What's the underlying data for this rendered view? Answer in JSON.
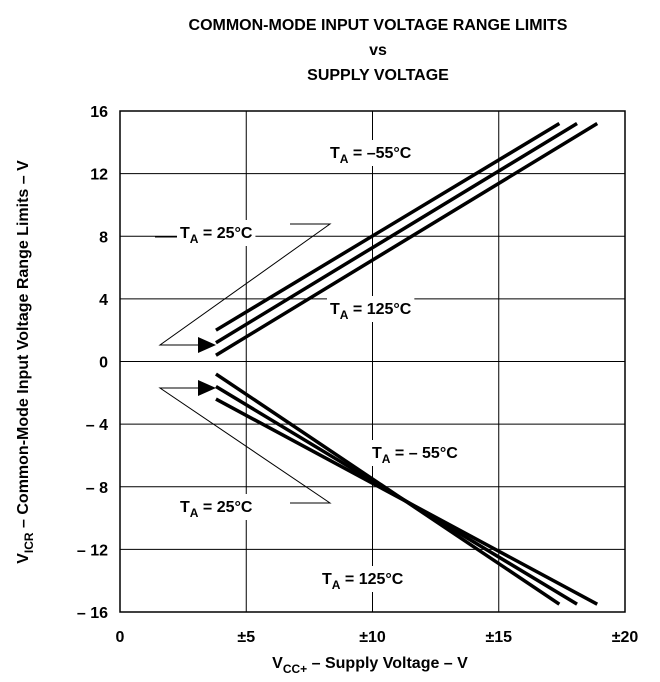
{
  "chart_data": {
    "type": "line",
    "title": [
      "COMMON-MODE INPUT VOLTAGE RANGE LIMITS",
      "vs",
      "SUPPLY VOLTAGE"
    ],
    "x_label": {
      "main": "V",
      "sub": "CC+",
      "rest": " – Supply Voltage – V"
    },
    "y_label": {
      "main": "V",
      "sub": "ICR",
      "rest": "  – Common-Mode Input Voltage Range Limits – V"
    },
    "xlim": [
      0,
      20
    ],
    "ylim": [
      -16,
      16
    ],
    "xticks": [
      0,
      {
        "value": 5,
        "label": "±5"
      },
      {
        "value": 10,
        "label": "±10"
      },
      {
        "value": 15,
        "label": "±15"
      },
      {
        "value": 20,
        "label": "±20"
      }
    ],
    "yticks": [
      16,
      12,
      8,
      4,
      0,
      {
        "value": -4,
        "label": "– 4"
      },
      {
        "value": -8,
        "label": "– 8"
      },
      {
        "value": -12,
        "label": "– 12"
      },
      {
        "value": -16,
        "label": "– 16"
      }
    ],
    "grid": true,
    "color": "#000000",
    "series": [
      {
        "x": [
          3.8,
          17.4
        ],
        "values": [
          2.0,
          15.2
        ]
      },
      {
        "x": [
          3.8,
          18.1
        ],
        "values": [
          1.2,
          15.2
        ]
      },
      {
        "x": [
          3.8,
          18.9
        ],
        "values": [
          0.4,
          15.2
        ]
      },
      {
        "x": [
          3.8,
          17.4
        ],
        "values": [
          -0.8,
          -15.5
        ]
      },
      {
        "x": [
          3.8,
          18.1
        ],
        "values": [
          -1.6,
          -15.5
        ]
      },
      {
        "x": [
          3.8,
          18.9
        ],
        "values": [
          -2.4,
          -15.5
        ]
      }
    ],
    "annotations": [
      {
        "main": "T",
        "sub": "A",
        "rest": " = –55°C"
      },
      {
        "main": "T",
        "sub": "A",
        "rest": " = 25°C"
      },
      {
        "main": "T",
        "sub": "A",
        "rest": " = 125°C"
      },
      {
        "main": "T",
        "sub": "A",
        "rest": " = – 55°C"
      },
      {
        "main": "T",
        "sub": "A",
        "rest": " = 25°C"
      },
      {
        "main": "T",
        "sub": "A",
        "rest": " = 125°C"
      }
    ]
  }
}
